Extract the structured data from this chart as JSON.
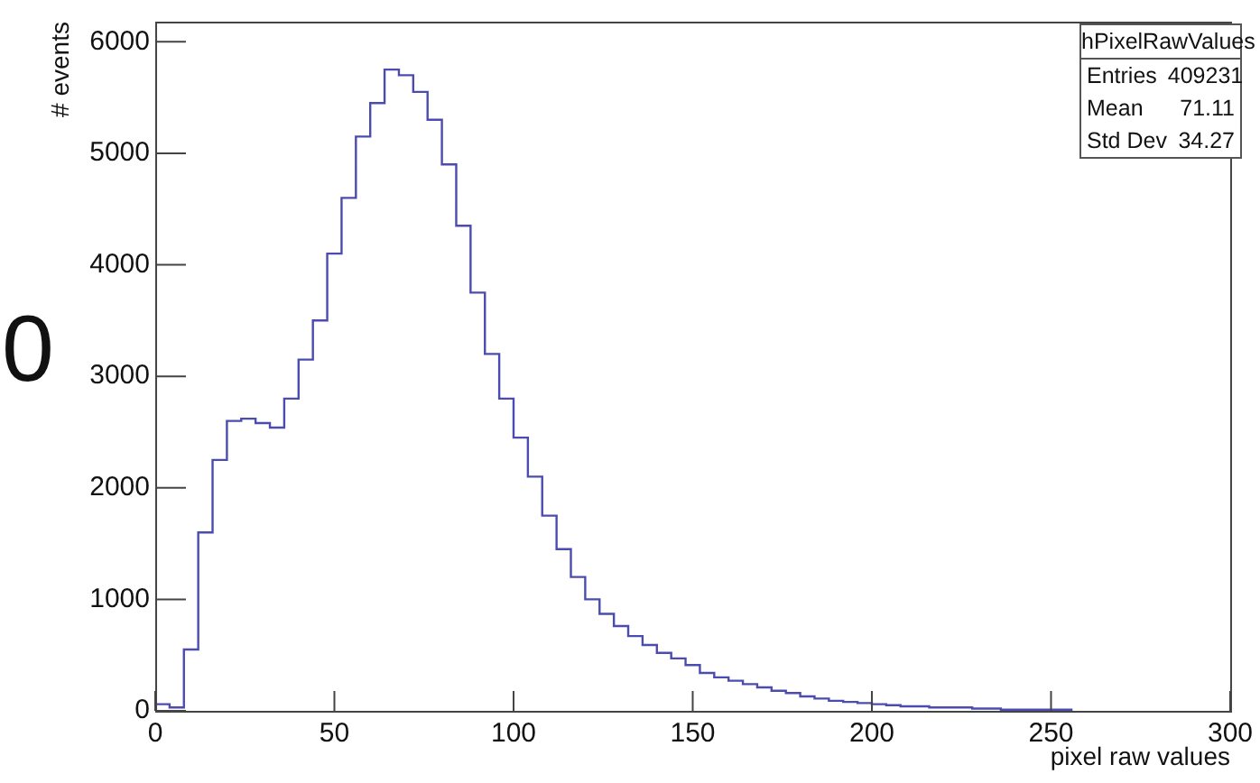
{
  "chart_data": {
    "type": "histogram",
    "xlabel": "pixel raw values",
    "ylabel": "# events",
    "annotations": [
      "0",
      "hPixelRawValues",
      "Entries",
      "409231",
      "Mean",
      "71.11",
      "Std Dev",
      "34.27"
    ],
    "bins": [
      0,
      4,
      8,
      12,
      16,
      20,
      24,
      28,
      32,
      36,
      40,
      44,
      48,
      52,
      56,
      60,
      64,
      68,
      72,
      76,
      80,
      84,
      88,
      92,
      96,
      100,
      104,
      108,
      112,
      116,
      120,
      124,
      128,
      132,
      136,
      140,
      144,
      148,
      152,
      156,
      160,
      164,
      168,
      172,
      176,
      180,
      184,
      188,
      192,
      196,
      200,
      204,
      208,
      212,
      216,
      220,
      224,
      228,
      232,
      236,
      240,
      244,
      248,
      252,
      256
    ],
    "values": [
      60,
      30,
      550,
      1600,
      2250,
      2600,
      2620,
      2580,
      2540,
      2800,
      3150,
      3500,
      4100,
      4600,
      5150,
      5450,
      5750,
      5700,
      5550,
      5300,
      4900,
      4350,
      3750,
      3200,
      2800,
      2450,
      2100,
      1750,
      1450,
      1200,
      1000,
      870,
      760,
      670,
      590,
      520,
      470,
      410,
      340,
      300,
      270,
      240,
      210,
      180,
      160,
      130,
      110,
      90,
      80,
      70,
      60,
      50,
      40,
      40,
      30,
      30,
      30,
      20,
      20,
      10,
      10,
      10,
      10,
      10
    ],
    "color": "#4c4cb0",
    "xlim": [
      0,
      300
    ],
    "xticks": [
      0,
      50,
      100,
      150,
      200,
      250,
      300
    ],
    "ylim": [
      0,
      6180
    ],
    "yticks": [
      0,
      1000,
      2000,
      3000,
      4000,
      5000,
      6000
    ],
    "legend": false
  }
}
